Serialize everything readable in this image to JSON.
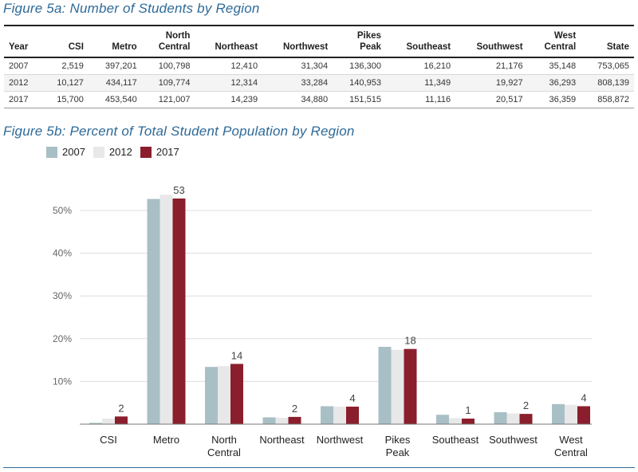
{
  "table": {
    "title": "Figure 5a: Number of Students by Region",
    "headers": [
      "Year",
      "CSI",
      "Metro",
      "North\nCentral",
      "Northeast",
      "Northwest",
      "Pikes\nPeak",
      "Southeast",
      "Southwest",
      "West\nCentral",
      "State"
    ],
    "rows": [
      [
        "2007",
        "2,519",
        "397,201",
        "100,798",
        "12,410",
        "31,304",
        "136,300",
        "16,210",
        "21,176",
        "35,148",
        "753,065"
      ],
      [
        "2012",
        "10,127",
        "434,117",
        "109,774",
        "12,314",
        "33,284",
        "140,953",
        "11,349",
        "19,927",
        "36,293",
        "808,139"
      ],
      [
        "2017",
        "15,700",
        "453,540",
        "121,007",
        "14,239",
        "34,880",
        "151,515",
        "11,116",
        "20,517",
        "36,359",
        "858,872"
      ]
    ]
  },
  "chart_data": {
    "type": "bar",
    "title": "Figure 5b: Percent of Total Student Population by Region",
    "categories": [
      "CSI",
      "Metro",
      "North\nCentral",
      "Northeast",
      "Northwest",
      "Pikes\nPeak",
      "Southeast",
      "Southwest",
      "West\nCentral"
    ],
    "series": [
      {
        "name": "2007",
        "color": "#a9bfc6",
        "values": [
          0.3,
          52.7,
          13.4,
          1.6,
          4.2,
          18.1,
          2.2,
          2.8,
          4.7
        ]
      },
      {
        "name": "2012",
        "color": "#e8e8e8",
        "values": [
          1.3,
          53.7,
          13.6,
          1.5,
          4.1,
          17.4,
          1.4,
          2.5,
          4.5
        ]
      },
      {
        "name": "2017",
        "color": "#8b1e2c",
        "values": [
          1.8,
          52.8,
          14.1,
          1.7,
          4.1,
          17.6,
          1.3,
          2.4,
          4.2
        ]
      }
    ],
    "data_labels": [
      "2",
      "53",
      "14",
      "2",
      "4",
      "18",
      "1",
      "2",
      "4"
    ],
    "yticks": [
      "10%",
      "20%",
      "30%",
      "40%",
      "50%"
    ],
    "ytick_values": [
      10,
      20,
      30,
      40,
      50
    ],
    "ylim": [
      0,
      55
    ],
    "grid": true,
    "legend": "top-left"
  }
}
